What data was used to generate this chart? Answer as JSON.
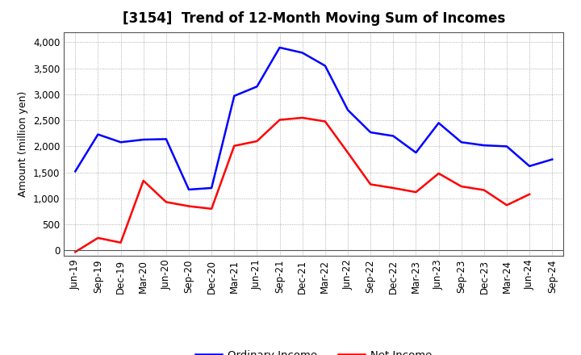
{
  "title": "[3154]  Trend of 12-Month Moving Sum of Incomes",
  "ylabel": "Amount (million yen)",
  "ylim": [
    -100,
    4200
  ],
  "yticks": [
    0,
    500,
    1000,
    1500,
    2000,
    2500,
    3000,
    3500,
    4000
  ],
  "labels": [
    "Jun-19",
    "Sep-19",
    "Dec-19",
    "Mar-20",
    "Jun-20",
    "Sep-20",
    "Dec-20",
    "Mar-21",
    "Jun-21",
    "Sep-21",
    "Dec-21",
    "Mar-22",
    "Jun-22",
    "Sep-22",
    "Dec-22",
    "Mar-23",
    "Jun-23",
    "Sep-23",
    "Dec-23",
    "Mar-24",
    "Jun-24",
    "Sep-24"
  ],
  "ordinary_income": [
    1520,
    2230,
    2080,
    2130,
    2140,
    1170,
    1200,
    2970,
    3150,
    3900,
    3800,
    3550,
    2700,
    2270,
    2200,
    1880,
    2450,
    2080,
    2020,
    2000,
    1620,
    1750
  ],
  "net_income": [
    -30,
    240,
    150,
    1340,
    930,
    850,
    800,
    2010,
    2100,
    2510,
    2550,
    2480,
    1880,
    1270,
    1200,
    1120,
    1480,
    1230,
    1160,
    870,
    1080,
    null
  ],
  "ordinary_color": "#0000FF",
  "net_color": "#FF0000",
  "background_color": "#FFFFFF",
  "plot_bg_color": "#FFFFFF",
  "grid_color": "#999999",
  "title_fontsize": 12,
  "axis_fontsize": 8.5,
  "legend_fontsize": 9.5
}
